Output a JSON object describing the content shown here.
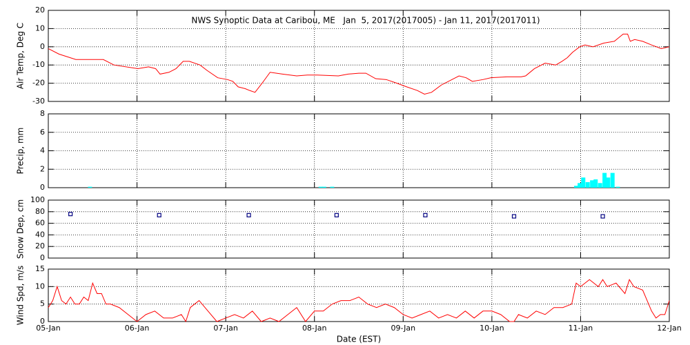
{
  "chart_data": [
    {
      "type": "line",
      "title": "NWS Synoptic Data at Caribou, ME   Jan  5, 2017(2017005) - Jan 11, 2017(2017011)",
      "y_label": "Air Temp, Deg C",
      "x": [
        0,
        0.12,
        0.31,
        0.62,
        0.74,
        1.01,
        1.13,
        1.21,
        1.26,
        1.36,
        1.44,
        1.52,
        1.59,
        1.71,
        1.79,
        1.91,
        2.02,
        2.08,
        2.14,
        2.22,
        2.27,
        2.33,
        2.41,
        2.5,
        2.64,
        2.8,
        2.92,
        3.03,
        3.27,
        3.38,
        3.5,
        3.58,
        3.69,
        3.81,
        3.93,
        4.04,
        4.16,
        4.24,
        4.32,
        4.43,
        4.55,
        4.63,
        4.71,
        4.78,
        4.9,
        4.99,
        5.17,
        5.33,
        5.38,
        5.48,
        5.6,
        5.72,
        5.79,
        5.85,
        5.91,
        5.99,
        6.05,
        6.14,
        6.26,
        6.38,
        6.43,
        6.48,
        6.53,
        6.56,
        6.61,
        6.7,
        6.8,
        6.91,
        7
      ],
      "series": [
        {
          "name": "Air Temp",
          "color": "#ff0000",
          "values": [
            -1,
            -4,
            -7,
            -7,
            -10,
            -12,
            -11,
            -12,
            -15,
            -14,
            -12,
            -8,
            -8,
            -10,
            -13,
            -17,
            -18,
            -19,
            -22,
            -23,
            -24,
            -25,
            -20,
            -14,
            -15,
            -16,
            -15.5,
            -15.5,
            -16,
            -15,
            -14.5,
            -14.5,
            -17.5,
            -18,
            -20,
            -22,
            -24,
            -26,
            -25,
            -21,
            -18,
            -16,
            -17,
            -19,
            -18,
            -17,
            -16.5,
            -16.5,
            -16,
            -12,
            -9,
            -10,
            -8,
            -6,
            -3,
            0,
            1,
            0,
            2,
            3,
            5,
            7,
            7,
            3,
            4,
            3,
            1,
            -1,
            0
          ]
        }
      ],
      "xlim": [
        0,
        7
      ],
      "ylim": [
        -30,
        20
      ],
      "yticks": [
        -30,
        -20,
        -10,
        0,
        10,
        20
      ],
      "grid": true
    },
    {
      "type": "bar",
      "y_label": "Precip, mm",
      "x": [
        0.47,
        3.07,
        3.11,
        3.2,
        5.95,
        5.99,
        6.03,
        6.08,
        6.13,
        6.17,
        6.22,
        6.27,
        6.31,
        6.36,
        6.42
      ],
      "series": [
        {
          "name": "Precip",
          "color": "#00ffff",
          "values": [
            0.1,
            0.1,
            0.1,
            0.1,
            0.2,
            0.5,
            1.1,
            0.6,
            0.8,
            0.9,
            0.5,
            1.6,
            1.1,
            1.6,
            0.1
          ]
        }
      ],
      "xlim": [
        0,
        7
      ],
      "ylim": [
        0,
        8
      ],
      "yticks": [
        0,
        2,
        4,
        6,
        8
      ],
      "grid": true
    },
    {
      "type": "scatter",
      "y_label": "Snow Dep, cm",
      "x": [
        0.25,
        1.25,
        2.26,
        3.25,
        4.25,
        5.25,
        6.25
      ],
      "series": [
        {
          "name": "Snow Depth",
          "color": "#000080",
          "values": [
            76,
            74,
            74,
            74,
            74,
            72,
            72
          ]
        }
      ],
      "xlim": [
        0,
        7
      ],
      "ylim": [
        0,
        100
      ],
      "yticks": [
        0,
        20,
        40,
        60,
        80,
        100
      ],
      "grid": true
    },
    {
      "type": "line",
      "y_label": "Wind Spd, m/s",
      "x_label": "Date (EST)",
      "x": [
        0,
        0.05,
        0.1,
        0.15,
        0.2,
        0.25,
        0.3,
        0.35,
        0.4,
        0.45,
        0.5,
        0.55,
        0.6,
        0.65,
        0.7,
        0.8,
        0.9,
        1.0,
        1.1,
        1.2,
        1.3,
        1.4,
        1.5,
        1.55,
        1.6,
        1.7,
        1.8,
        1.9,
        2.0,
        2.1,
        2.2,
        2.3,
        2.4,
        2.5,
        2.6,
        2.7,
        2.8,
        2.9,
        3.0,
        3.1,
        3.2,
        3.3,
        3.4,
        3.5,
        3.6,
        3.7,
        3.8,
        3.9,
        4.0,
        4.1,
        4.2,
        4.3,
        4.4,
        4.5,
        4.6,
        4.7,
        4.8,
        4.9,
        5.0,
        5.1,
        5.2,
        5.25,
        5.3,
        5.4,
        5.5,
        5.6,
        5.7,
        5.8,
        5.9,
        5.95,
        6.0,
        6.1,
        6.2,
        6.25,
        6.3,
        6.4,
        6.5,
        6.55,
        6.6,
        6.7,
        6.75,
        6.8,
        6.85,
        6.9,
        6.95,
        7
      ],
      "series": [
        {
          "name": "Wind Speed",
          "color": "#ff0000",
          "values": [
            4,
            6,
            10,
            6,
            5,
            7,
            5,
            5,
            7,
            6,
            11,
            8,
            8,
            5,
            5,
            4,
            2,
            0,
            2,
            3,
            1,
            1,
            2,
            0,
            4,
            6,
            3,
            0,
            1,
            2,
            1,
            3,
            0,
            1,
            0,
            2,
            4,
            0,
            3,
            3,
            5,
            6,
            6,
            7,
            5,
            4,
            5,
            4,
            2,
            1,
            2,
            3,
            1,
            2,
            1,
            3,
            1,
            3,
            3,
            2,
            0,
            0,
            2,
            1,
            3,
            2,
            4,
            4,
            5,
            11,
            10,
            12,
            10,
            12,
            10,
            11,
            8,
            12,
            10,
            9,
            6,
            3,
            1,
            2,
            2,
            6
          ]
        }
      ],
      "xlim": [
        0,
        7
      ],
      "ylim": [
        0,
        15
      ],
      "yticks": [
        0,
        5,
        10,
        15
      ],
      "grid": true,
      "xticks": [
        {
          "value": 0,
          "label": "05-Jan"
        },
        {
          "value": 1,
          "label": "06-Jan"
        },
        {
          "value": 2,
          "label": "07-Jan"
        },
        {
          "value": 3,
          "label": "08-Jan"
        },
        {
          "value": 4,
          "label": "09-Jan"
        },
        {
          "value": 5,
          "label": "10-Jan"
        },
        {
          "value": 6,
          "label": "11-Jan"
        },
        {
          "value": 7,
          "label": "12-Jan"
        }
      ]
    }
  ]
}
